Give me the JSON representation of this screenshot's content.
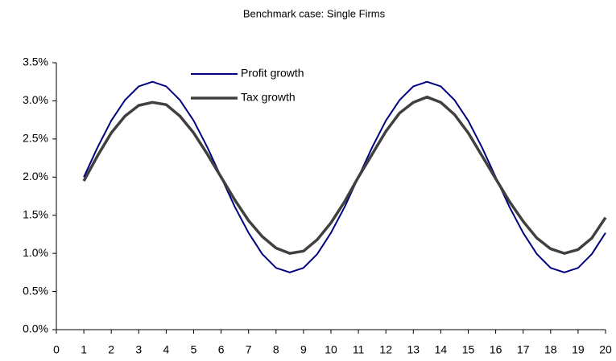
{
  "chart_data": {
    "type": "line",
    "title": "Benchmark case: Single Firms",
    "x": [
      1,
      1.5,
      2,
      2.5,
      3,
      3.5,
      4,
      4.5,
      5,
      5.5,
      6,
      6.5,
      7,
      7.5,
      8,
      8.5,
      9,
      9.5,
      10,
      10.5,
      11,
      11.5,
      12,
      12.5,
      13,
      13.5,
      14,
      14.5,
      15,
      15.5,
      16,
      16.5,
      17,
      17.5,
      18,
      18.5,
      19,
      19.5,
      20
    ],
    "series": [
      {
        "name": "Profit growth",
        "color": "#000080",
        "width": 2,
        "values": [
          2.0,
          2.39,
          2.74,
          3.01,
          3.19,
          3.25,
          3.19,
          3.01,
          2.74,
          2.39,
          2.0,
          1.61,
          1.27,
          0.99,
          0.81,
          0.75,
          0.81,
          0.99,
          1.27,
          1.61,
          2.0,
          2.39,
          2.74,
          3.01,
          3.19,
          3.25,
          3.19,
          3.01,
          2.74,
          2.39,
          2.0,
          1.61,
          1.27,
          0.99,
          0.81,
          0.75,
          0.81,
          0.99,
          1.27
        ]
      },
      {
        "name": "Tax growth",
        "color": "#404040",
        "width": 3.5,
        "values": [
          1.95,
          2.28,
          2.58,
          2.8,
          2.94,
          2.98,
          2.95,
          2.8,
          2.58,
          2.3,
          2.0,
          1.7,
          1.43,
          1.22,
          1.07,
          1.0,
          1.03,
          1.18,
          1.4,
          1.68,
          2.0,
          2.3,
          2.6,
          2.84,
          2.98,
          3.05,
          2.98,
          2.82,
          2.58,
          2.28,
          1.98,
          1.68,
          1.42,
          1.2,
          1.06,
          1.0,
          1.05,
          1.2,
          1.47
        ]
      }
    ],
    "xlim": [
      0,
      20
    ],
    "xticks": [
      0,
      1,
      2,
      3,
      4,
      5,
      6,
      7,
      8,
      9,
      10,
      11,
      12,
      13,
      14,
      15,
      16,
      17,
      18,
      19,
      20
    ],
    "ylim": [
      0,
      3.5
    ],
    "yticks": [
      {
        "value": 0,
        "label": "0.0%"
      },
      {
        "value": 0.5,
        "label": "0.5%"
      },
      {
        "value": 1,
        "label": "1.0%"
      },
      {
        "value": 1.5,
        "label": "1.5%"
      },
      {
        "value": 2,
        "label": "2.0%"
      },
      {
        "value": 2.5,
        "label": "2.5%"
      },
      {
        "value": 3,
        "label": "3.0%"
      },
      {
        "value": 3.5,
        "label": "3.5%"
      }
    ],
    "grid": false,
    "legend": "upper left"
  }
}
